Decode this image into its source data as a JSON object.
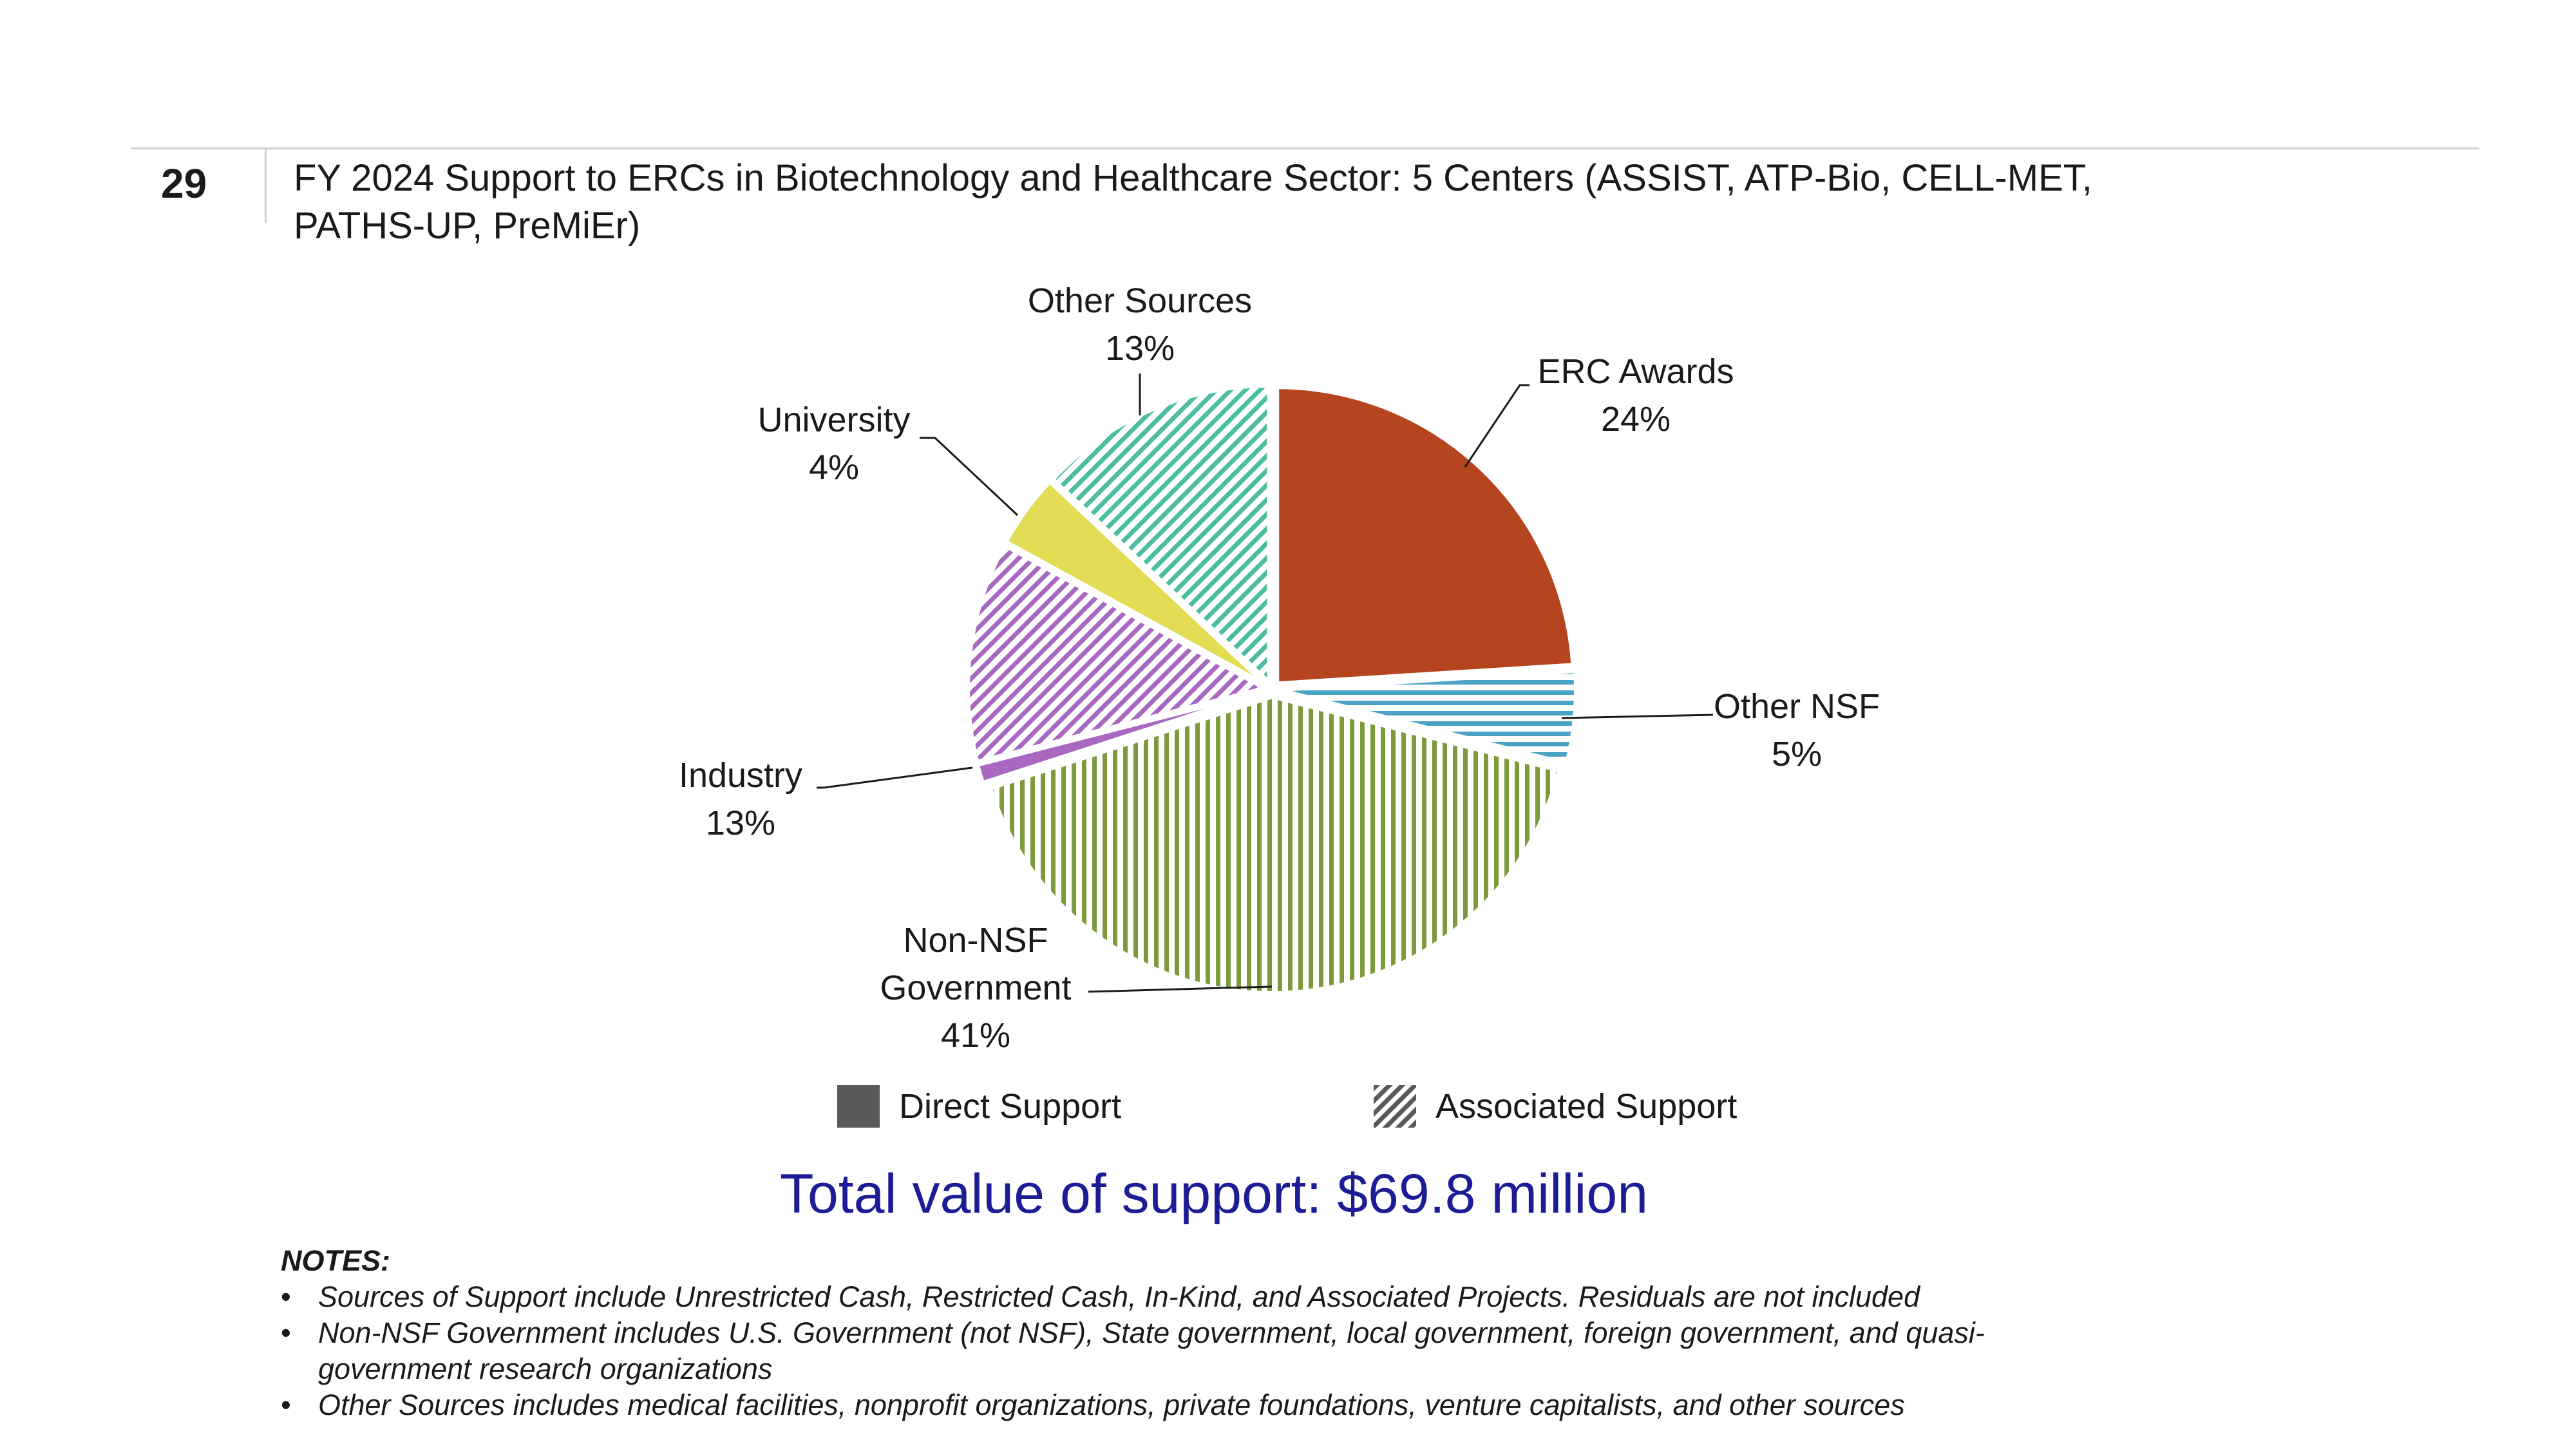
{
  "slide": {
    "number": "29",
    "title": "FY 2024 Support to ERCs in Biotechnology and Healthcare Sector: 5 Centers (ASSIST, ATP-Bio, CELL-MET, PATHS-UP, PreMiEr)"
  },
  "chart_data": {
    "type": "pie",
    "slices": [
      {
        "name": "ERC Awards",
        "value": 24,
        "label_lines": [
          "ERC Awards"
        ],
        "pct_text": "24%",
        "color": "#b5451f",
        "pattern": "solid",
        "support": "Direct Support"
      },
      {
        "name": "Other NSF",
        "value": 5,
        "label_lines": [
          "Other NSF"
        ],
        "pct_text": "5%",
        "color": "#4aa3c4",
        "pattern": "hstripe",
        "support": "Associated Support"
      },
      {
        "name": "Non-NSF Government",
        "value": 41,
        "label_lines": [
          "Non-NSF",
          "Government"
        ],
        "pct_text": "41%",
        "color": "#7d9a3c",
        "pattern": "vstripe",
        "support": "Associated Support"
      },
      {
        "name": "Industry",
        "value": 1,
        "label_lines": [
          "Industry"
        ],
        "pct_text": "",
        "color": "#a868c0",
        "pattern": "solid",
        "support": "Direct Support"
      },
      {
        "name": "Industry",
        "value": 12,
        "label_lines": [],
        "pct_text": "",
        "color": "#a868c0",
        "pattern": "dstripe",
        "support": "Associated Support"
      },
      {
        "name": "University",
        "value": 4,
        "label_lines": [
          "University"
        ],
        "pct_text": "4%",
        "color": "#e2dc55",
        "pattern": "solid",
        "support": "Direct Support"
      },
      {
        "name": "Other Sources",
        "value": 13,
        "label_lines": [
          "Other Sources"
        ],
        "pct_text": "13%",
        "color": "#4cbca2",
        "pattern": "dstripe",
        "support": "Associated Support"
      }
    ],
    "industry_pct_text": "13%",
    "legend": [
      {
        "label": "Direct Support",
        "style": "solid",
        "color": "#595959"
      },
      {
        "label": "Associated Support",
        "style": "hatched",
        "color": "#595959"
      }
    ]
  },
  "total_text": "Total value of support: $69.8 million",
  "notes": {
    "title": "NOTES:",
    "items": [
      "Sources of Support include Unrestricted Cash, Restricted Cash, In-Kind, and Associated Projects. Residuals are not included",
      "Non-NSF Government includes U.S. Government (not NSF), State government, local government, foreign government, and quasi-government research organizations",
      "Other Sources includes medical facilities, nonprofit organizations, private foundations, venture capitalists, and other sources"
    ]
  }
}
